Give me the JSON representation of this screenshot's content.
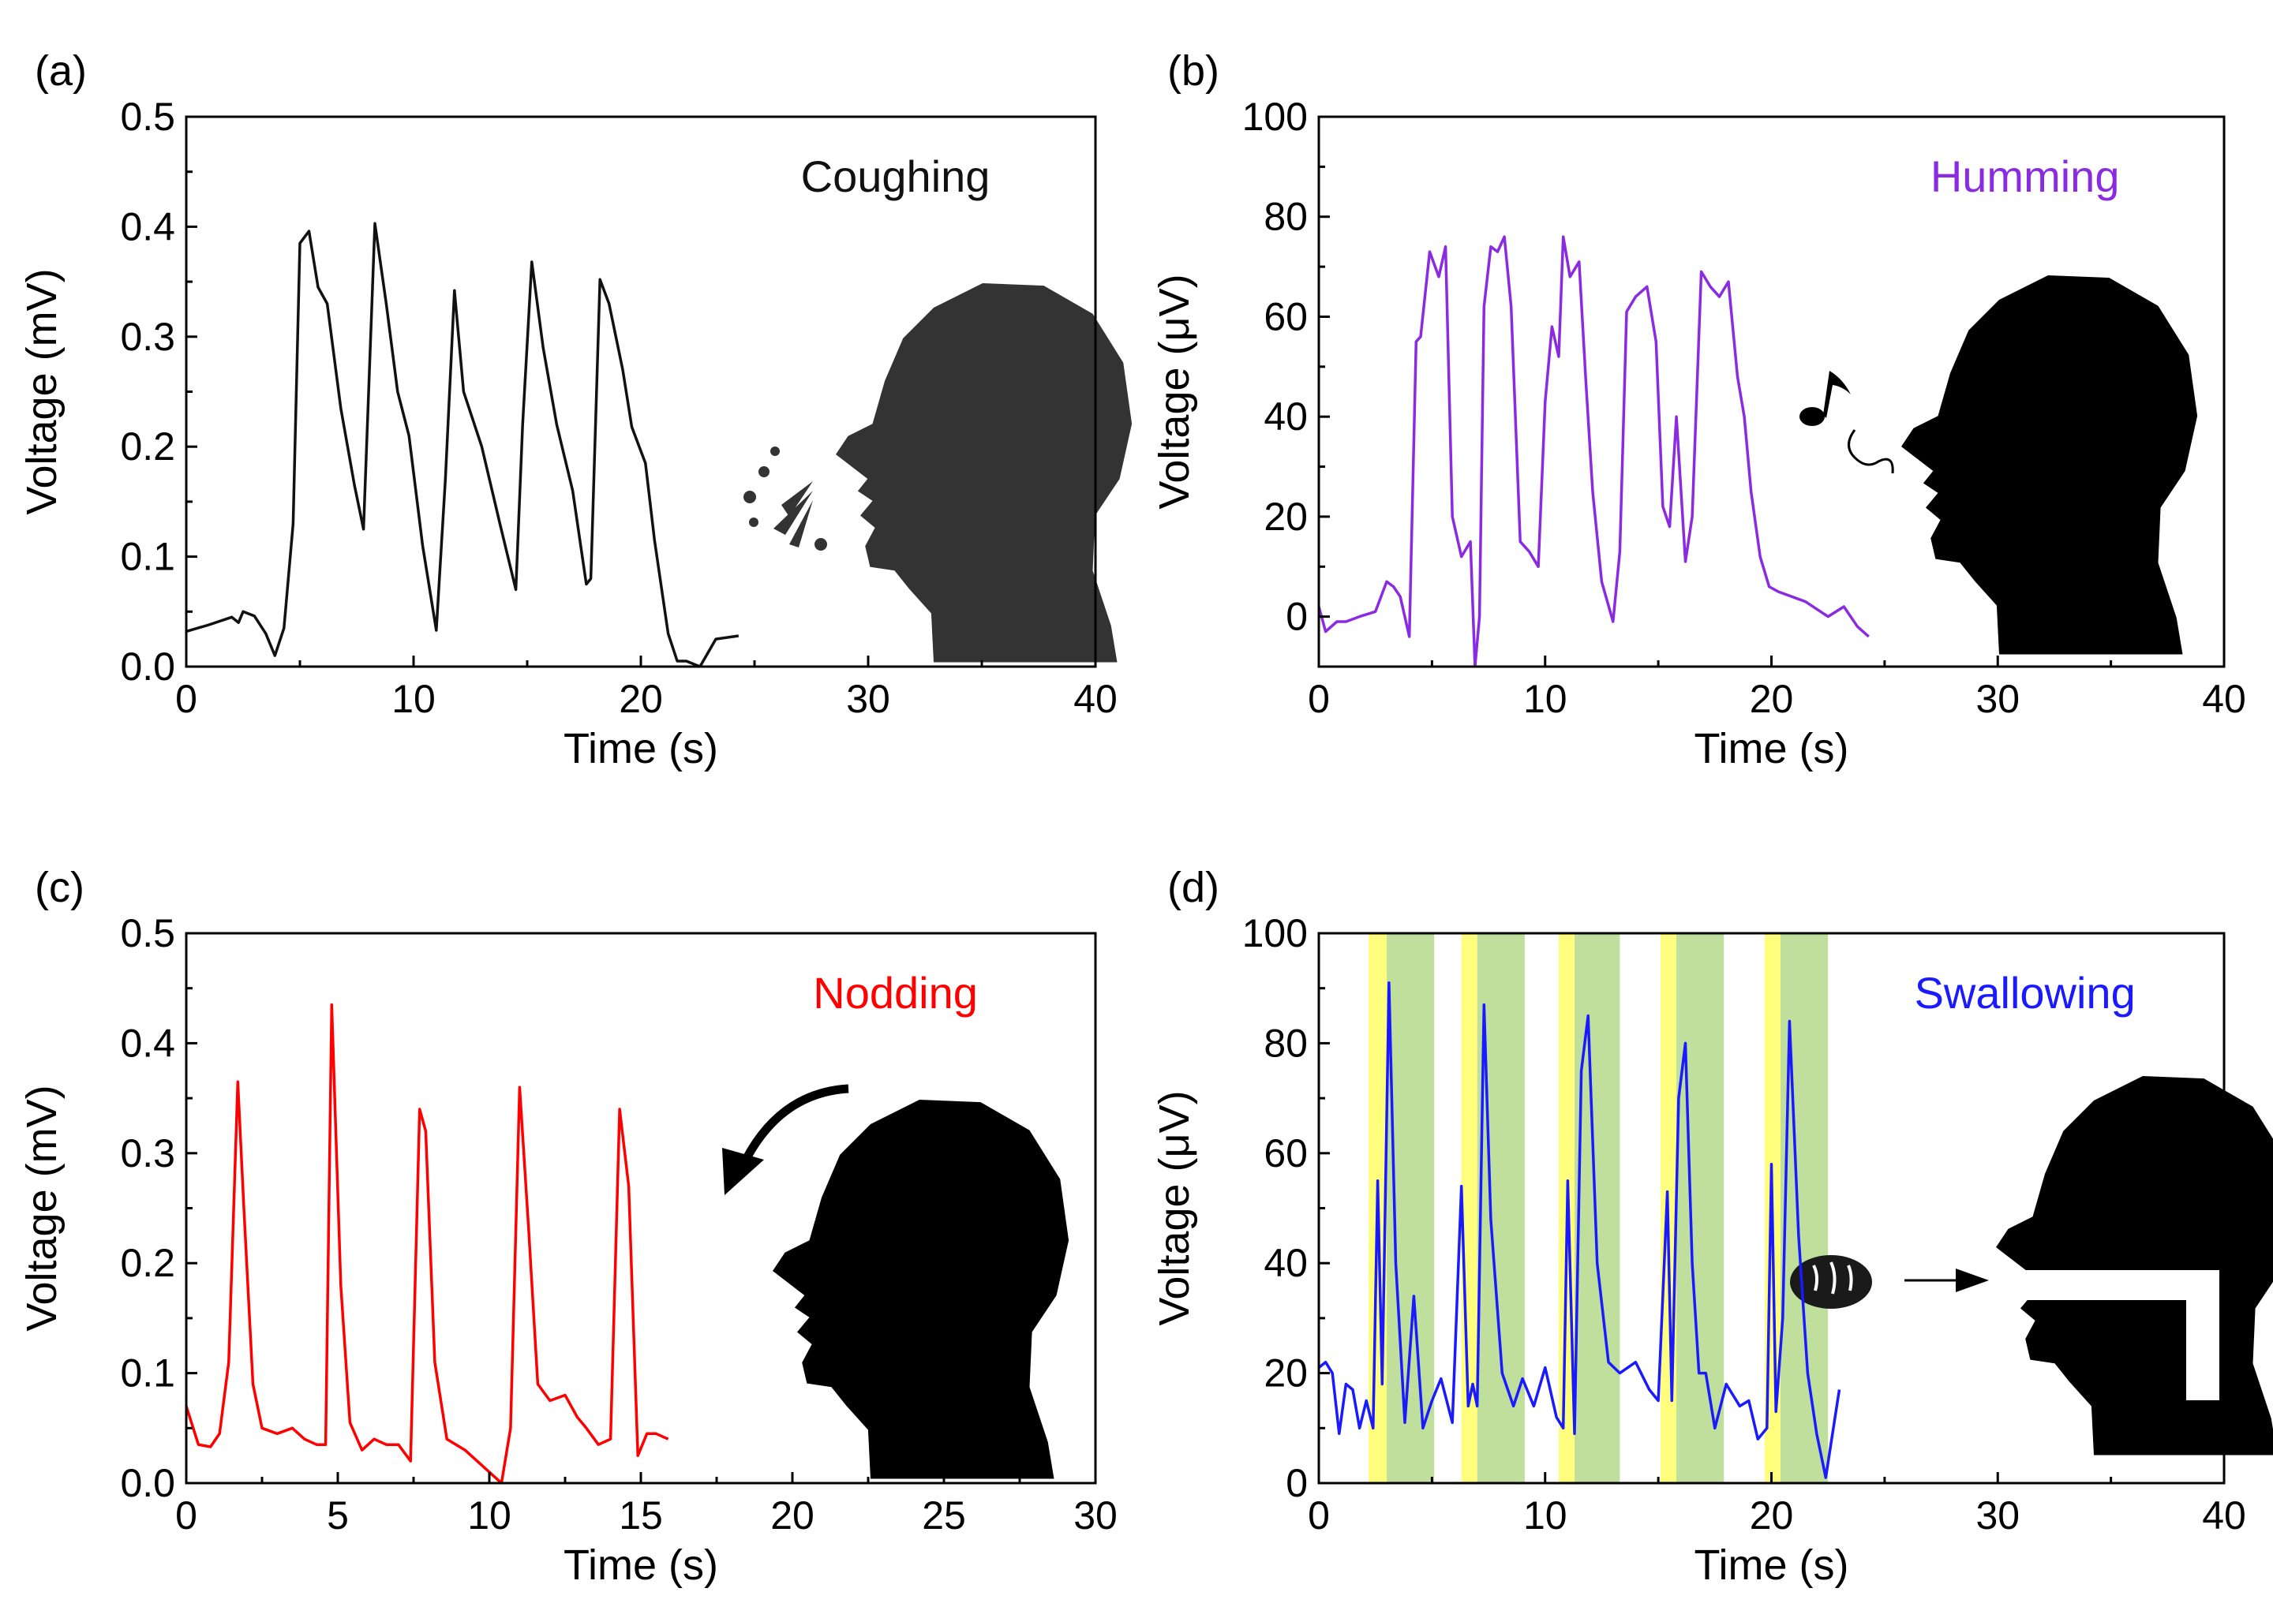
{
  "chart_data": [
    {
      "panel_label": "(a)",
      "type": "line",
      "annotation": "Coughing",
      "color": "#111111",
      "xlabel": "Time (s)",
      "ylabel": "Voltage (mV)",
      "xlim": [
        0,
        40
      ],
      "ylim": [
        0,
        0.5
      ],
      "xticks": [
        0,
        10,
        20,
        30,
        40
      ],
      "xtick_labels": [
        "0",
        "10",
        "20",
        "30",
        "40"
      ],
      "yticks": [
        0,
        0.1,
        0.2,
        0.3,
        0.4,
        0.5
      ],
      "ytick_labels": [
        "0.0",
        "0.1",
        "0.2",
        "0.3",
        "0.4",
        "0.5"
      ],
      "icon": "coughing-head-icon",
      "series": [
        {
          "x": [
            0,
            1,
            2,
            2.3,
            2.5,
            3,
            3.5,
            3.9,
            4.3,
            4.7,
            5.0,
            5.4,
            5.8,
            6.2,
            6.8,
            7.4,
            7.8,
            8.3,
            8.8,
            9.3,
            9.8,
            10.4,
            11.0,
            11.4,
            11.8,
            12.2,
            13.0,
            13.8,
            14.5,
            14.8,
            15.2,
            15.7,
            16.3,
            17.0,
            17.6,
            17.8,
            18.2,
            18.6,
            19.2,
            19.6,
            20.2,
            20.6,
            21.2,
            21.6,
            22.0,
            22.6,
            23.3,
            24.3
          ],
          "y": [
            0.032,
            0.038,
            0.045,
            0.04,
            0.05,
            0.046,
            0.03,
            0.01,
            0.035,
            0.13,
            0.385,
            0.396,
            0.345,
            0.33,
            0.235,
            0.165,
            0.125,
            0.403,
            0.33,
            0.25,
            0.21,
            0.11,
            0.033,
            0.17,
            0.342,
            0.25,
            0.2,
            0.13,
            0.07,
            0.22,
            0.368,
            0.29,
            0.22,
            0.16,
            0.075,
            0.08,
            0.352,
            0.33,
            0.27,
            0.218,
            0.185,
            0.115,
            0.03,
            0.005,
            0.005,
            0.0,
            0.025,
            0.028
          ]
        }
      ]
    },
    {
      "panel_label": "(b)",
      "type": "line",
      "annotation": "Humming",
      "color": "#8a2be2",
      "xlabel": "Time (s)",
      "ylabel": "Voltage (μV)",
      "xlim": [
        0,
        40
      ],
      "ylim": [
        -10,
        100
      ],
      "xticks": [
        0,
        10,
        20,
        30,
        40
      ],
      "xtick_labels": [
        "0",
        "10",
        "20",
        "30",
        "40"
      ],
      "yticks": [
        0,
        20,
        40,
        60,
        80,
        100
      ],
      "ytick_labels": [
        "0",
        "20",
        "40",
        "60",
        "80",
        "100"
      ],
      "icon": "humming-head-icon",
      "series": [
        {
          "x": [
            0,
            0.3,
            0.8,
            1.2,
            1.8,
            2.5,
            3.0,
            3.3,
            3.6,
            4.0,
            4.3,
            4.5,
            4.9,
            5.3,
            5.6,
            5.9,
            6.3,
            6.7,
            6.9,
            7.1,
            7.3,
            7.6,
            7.9,
            8.2,
            8.5,
            8.9,
            9.3,
            9.7,
            10.0,
            10.3,
            10.6,
            10.8,
            11.1,
            11.5,
            11.8,
            12.1,
            12.5,
            13.0,
            13.3,
            13.6,
            14.0,
            14.5,
            14.9,
            15.2,
            15.5,
            15.8,
            16.2,
            16.5,
            16.9,
            17.3,
            17.7,
            18.1,
            18.5,
            18.8,
            19.1,
            19.5,
            19.9,
            20.3,
            21.5,
            22.5,
            23.2,
            23.8,
            24.3
          ],
          "y": [
            2,
            -3,
            -1,
            -1,
            0,
            1,
            7,
            6,
            4,
            -4,
            55,
            56,
            73,
            68,
            74,
            20,
            12,
            15,
            -10,
            0,
            62,
            74,
            73,
            76,
            62,
            15,
            13,
            10,
            43,
            58,
            52,
            76,
            68,
            71,
            47,
            25,
            7,
            -1,
            13,
            61,
            64,
            66,
            55,
            22,
            18,
            40,
            11,
            20,
            69,
            66,
            64,
            67,
            48,
            40,
            25,
            12,
            6,
            5,
            3,
            0,
            2,
            -2,
            -4
          ]
        }
      ]
    },
    {
      "panel_label": "(c)",
      "type": "line",
      "annotation": "Nodding",
      "color": "#ff0000",
      "xlabel": "Time (s)",
      "ylabel": "Voltage (mV)",
      "xlim": [
        0,
        30
      ],
      "ylim": [
        0,
        0.5
      ],
      "xticks": [
        0,
        5,
        10,
        15,
        20,
        25,
        30
      ],
      "xtick_labels": [
        "0",
        "5",
        "10",
        "15",
        "20",
        "25",
        "30"
      ],
      "yticks": [
        0,
        0.1,
        0.2,
        0.3,
        0.4,
        0.5
      ],
      "ytick_labels": [
        "0.0",
        "0.1",
        "0.2",
        "0.3",
        "0.4",
        "0.5"
      ],
      "icon": "nodding-head-icon",
      "series": [
        {
          "x": [
            0,
            0.4,
            0.8,
            1.1,
            1.4,
            1.7,
            1.9,
            2.2,
            2.5,
            3.0,
            3.5,
            3.9,
            4.3,
            4.6,
            4.8,
            5.1,
            5.4,
            5.8,
            6.2,
            6.6,
            7.0,
            7.4,
            7.7,
            7.9,
            8.2,
            8.6,
            9.2,
            9.6,
            10.0,
            10.4,
            10.7,
            11.0,
            11.3,
            11.6,
            12.0,
            12.5,
            12.9,
            13.2,
            13.6,
            14.0,
            14.3,
            14.6,
            14.9,
            15.2,
            15.5,
            15.9
          ],
          "y": [
            0.07,
            0.035,
            0.033,
            0.045,
            0.11,
            0.365,
            0.25,
            0.09,
            0.05,
            0.045,
            0.05,
            0.04,
            0.035,
            0.035,
            0.435,
            0.18,
            0.055,
            0.03,
            0.04,
            0.035,
            0.035,
            0.02,
            0.34,
            0.32,
            0.11,
            0.04,
            0.03,
            0.02,
            0.01,
            0.0,
            0.05,
            0.36,
            0.23,
            0.09,
            0.075,
            0.08,
            0.06,
            0.05,
            0.035,
            0.04,
            0.34,
            0.27,
            0.025,
            0.045,
            0.045,
            0.04
          ]
        }
      ]
    },
    {
      "panel_label": "(d)",
      "type": "line",
      "annotation": "Swallowing",
      "color": "#1a1aff",
      "xlabel": "Time (s)",
      "ylabel": "Voltage (μV)",
      "xlim": [
        0,
        40
      ],
      "ylim": [
        0,
        100
      ],
      "xticks": [
        0,
        10,
        20,
        30,
        40
      ],
      "xtick_labels": [
        "0",
        "10",
        "20",
        "30",
        "40"
      ],
      "yticks": [
        0,
        20,
        40,
        60,
        80,
        100
      ],
      "ytick_labels": [
        "0",
        "20",
        "40",
        "60",
        "80",
        "100"
      ],
      "icon": "swallowing-head-icon",
      "bands": [
        {
          "x0": 2.2,
          "x1": 3.0,
          "color": "#ffff66"
        },
        {
          "x0": 3.0,
          "x1": 5.1,
          "color": "#b5d98b"
        },
        {
          "x0": 6.3,
          "x1": 7.0,
          "color": "#ffff66"
        },
        {
          "x0": 7.0,
          "x1": 9.1,
          "color": "#b5d98b"
        },
        {
          "x0": 10.6,
          "x1": 11.3,
          "color": "#ffff66"
        },
        {
          "x0": 11.3,
          "x1": 13.3,
          "color": "#b5d98b"
        },
        {
          "x0": 15.1,
          "x1": 15.8,
          "color": "#ffff66"
        },
        {
          "x0": 15.8,
          "x1": 17.9,
          "color": "#b5d98b"
        },
        {
          "x0": 19.7,
          "x1": 20.4,
          "color": "#ffff66"
        },
        {
          "x0": 20.4,
          "x1": 22.5,
          "color": "#b5d98b"
        }
      ],
      "series": [
        {
          "x": [
            0,
            0.3,
            0.6,
            0.9,
            1.2,
            1.5,
            1.8,
            2.1,
            2.4,
            2.6,
            2.8,
            3.1,
            3.4,
            3.8,
            4.2,
            4.6,
            5.0,
            5.4,
            5.9,
            6.3,
            6.6,
            6.8,
            7.0,
            7.3,
            7.6,
            8.1,
            8.6,
            9.0,
            9.5,
            10.0,
            10.5,
            10.8,
            11.0,
            11.3,
            11.6,
            11.9,
            12.3,
            12.8,
            13.3,
            14.0,
            14.6,
            15.0,
            15.4,
            15.6,
            15.9,
            16.2,
            16.5,
            16.8,
            17.1,
            17.5,
            18.0,
            18.6,
            19.0,
            19.4,
            19.8,
            20.0,
            20.2,
            20.5,
            20.8,
            21.2,
            21.6,
            22.0,
            22.4,
            23.0
          ],
          "y": [
            21,
            22,
            20,
            9,
            18,
            17,
            10,
            15,
            10,
            55,
            18,
            91,
            40,
            11,
            34,
            10,
            15,
            19,
            11,
            54,
            14,
            18,
            14,
            87,
            48,
            20,
            14,
            19,
            14,
            21,
            12,
            10,
            55,
            9,
            75,
            85,
            40,
            22,
            20,
            22,
            17,
            15,
            53,
            15,
            70,
            80,
            40,
            20,
            20,
            10,
            18,
            14,
            15,
            8,
            10,
            58,
            13,
            30,
            84,
            45,
            20,
            9,
            1,
            17
          ]
        }
      ]
    }
  ]
}
